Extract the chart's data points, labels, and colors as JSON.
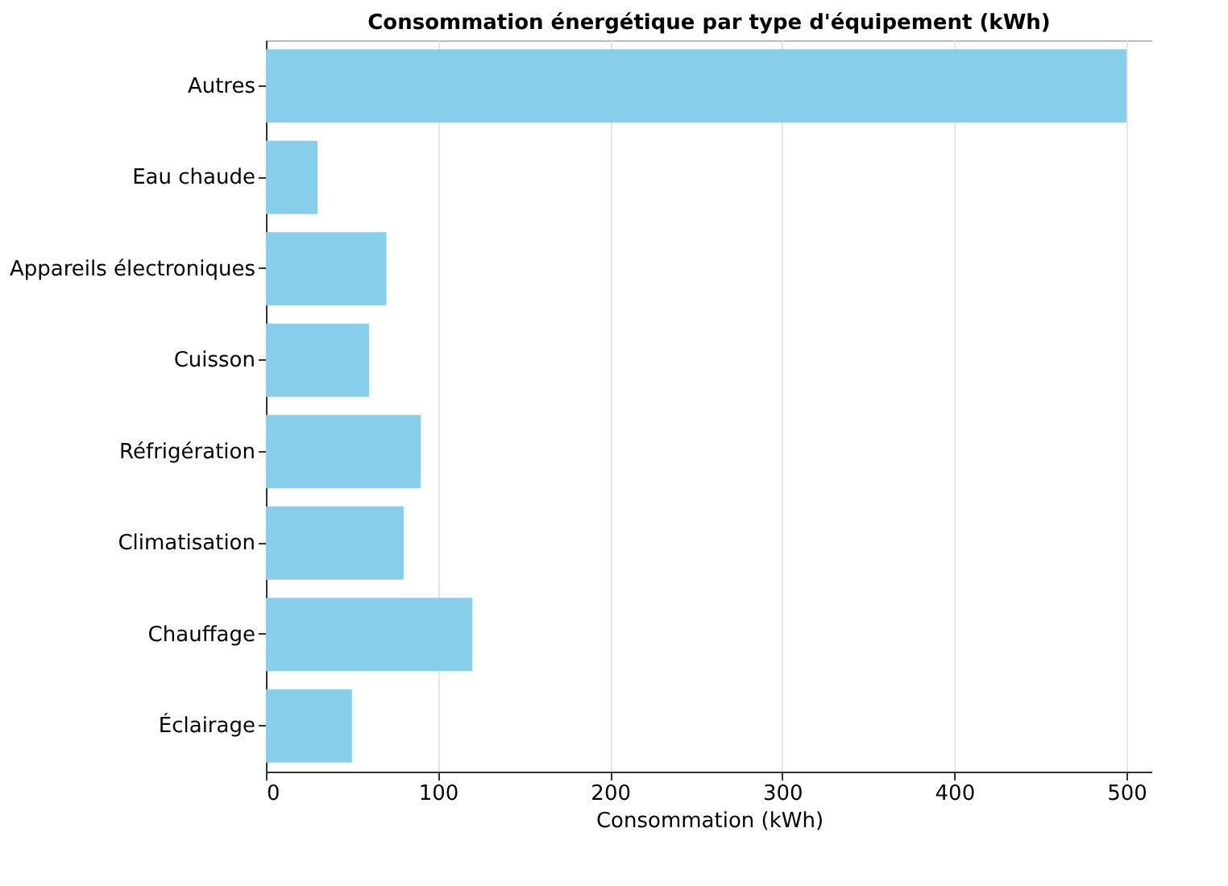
{
  "chart_data": {
    "type": "bar",
    "orientation": "horizontal",
    "title": "Consommation énergétique par type d'équipement (kWh)",
    "xlabel": "Consommation (kWh)",
    "categories": [
      "Autres",
      "Eau chaude",
      "Appareils électroniques",
      "Cuisson",
      "Réfrigération",
      "Climatisation",
      "Chauffage",
      "Éclairage"
    ],
    "values": [
      500,
      30,
      70,
      60,
      90,
      80,
      120,
      50
    ],
    "color": "#87ceeb",
    "xlim": [
      0,
      515
    ],
    "xticks": [
      0,
      100,
      200,
      300,
      400,
      500
    ],
    "grid": "x"
  }
}
